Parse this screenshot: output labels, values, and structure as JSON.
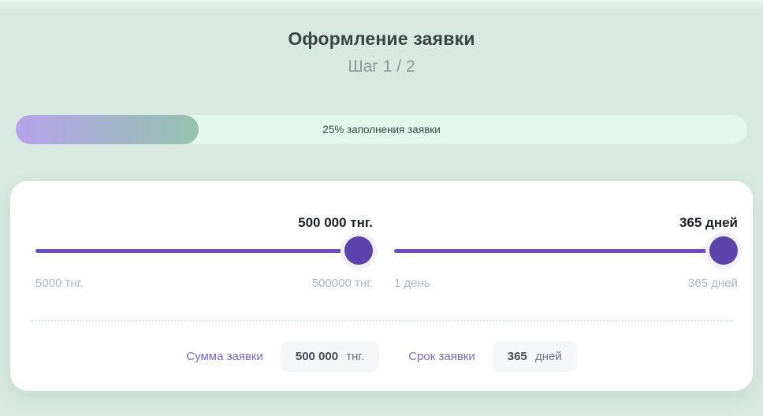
{
  "header": {
    "title": "Оформление заявки",
    "step": "Шаг 1 / 2"
  },
  "progress": {
    "percent": 25,
    "label": "25% заполнения заявки"
  },
  "sliders": [
    {
      "name": "amount",
      "value_label": "500 000 тнг.",
      "min_label": "5000 тнг.",
      "max_label": "500000 тнг.",
      "percent": 100
    },
    {
      "name": "term",
      "value_label": "365 дней",
      "min_label": "1 день",
      "max_label": "365 дней",
      "percent": 100
    }
  ],
  "fields": [
    {
      "label": "Сумма заявки",
      "value": "500 000",
      "unit": "тнг."
    },
    {
      "label": "Срок заявки",
      "value": "365",
      "unit": "дней"
    }
  ],
  "colors": {
    "bg": "#d7e9e1",
    "track-bg": "#e3f8ec",
    "fill-from": "#b6a2eb",
    "fill-to": "#94c2ad",
    "accent-purple": "#6a4ec2",
    "thumb-purple": "#5a43ab",
    "field-label": "#7568cc"
  }
}
